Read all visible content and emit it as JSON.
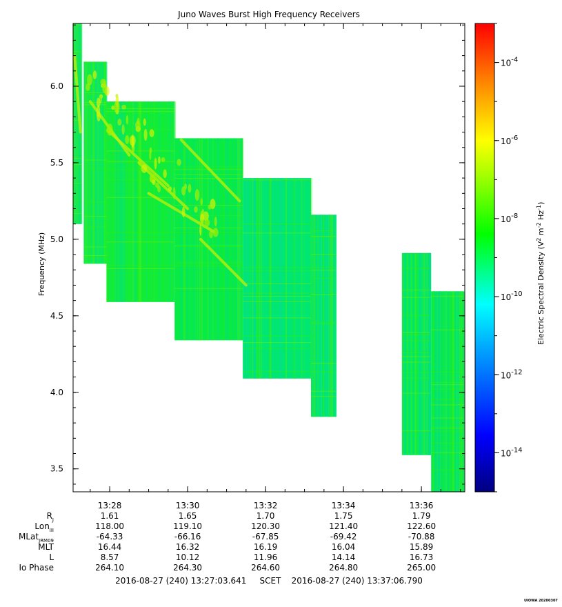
{
  "chart_data": {
    "type": "heatmap",
    "title": "Juno Waves Burst High Frequency Receivers",
    "ylabel": "Frequency (MHz)",
    "x_ticks": [
      "13:28",
      "13:30",
      "13:32",
      "13:34",
      "13:36"
    ],
    "y_ticks": [
      "3.5",
      "4.0",
      "4.5",
      "5.0",
      "5.5",
      "6.0"
    ],
    "ylim": [
      3.35,
      6.41
    ],
    "colorbar": {
      "label": "Electric Spectral Density (V",
      "label_sup1": "2",
      "label_mid": " m",
      "label_sup2": "-2",
      "label_hz": " Hz",
      "label_sup3": "-1",
      "label_end": ")",
      "ticks": [
        {
          "base": "10",
          "exp": "-4"
        },
        {
          "base": "10",
          "exp": "-6"
        },
        {
          "base": "10",
          "exp": "-8"
        },
        {
          "base": "10",
          "exp": "-10"
        },
        {
          "base": "10",
          "exp": "-12"
        },
        {
          "base": "10",
          "exp": "-14"
        }
      ],
      "range_log": [
        -15,
        -3
      ],
      "colors": [
        "#00007f",
        "#0000ff",
        "#00ffff",
        "#00ff00",
        "#ffff00",
        "#ff8000",
        "#ff0000"
      ]
    },
    "blocks": [
      {
        "t0": "13:27:03",
        "t1": "13:27:16",
        "f0": 5.1,
        "f1": 6.41,
        "base": "#00e47a"
      },
      {
        "t0": "13:27:20",
        "t1": "13:27:55",
        "f0": 4.84,
        "f1": 6.16,
        "base": "#14ee36"
      },
      {
        "t0": "13:27:55",
        "t1": "13:29:40",
        "f0": 4.59,
        "f1": 5.9,
        "base": "#10ec38"
      },
      {
        "t0": "13:29:40",
        "t1": "13:31:25",
        "f0": 4.34,
        "f1": 5.66,
        "base": "#08ea44"
      },
      {
        "t0": "13:31:25",
        "t1": "13:33:10",
        "f0": 4.09,
        "f1": 5.4,
        "base": "#00e672"
      },
      {
        "t0": "13:33:10",
        "t1": "13:33:48",
        "f0": 3.84,
        "f1": 5.16,
        "base": "#00e47a"
      },
      {
        "t0": "13:35:30",
        "t1": "13:36:15",
        "f0": 3.59,
        "f1": 4.91,
        "base": "#00e66c"
      },
      {
        "t0": "13:36:15",
        "t1": "13:37:06",
        "f0": 3.35,
        "f1": 4.66,
        "base": "#04e852"
      }
    ],
    "ephemeris": {
      "row_labels": [
        {
          "main": "R",
          "sub": "J"
        },
        {
          "main": "Lon",
          "sub": "III"
        },
        {
          "main": "MLat",
          "sub": "JRM09"
        },
        {
          "main": "MLT",
          "sub": ""
        },
        {
          "main": "L",
          "sub": ""
        },
        {
          "main": "Io Phase",
          "sub": ""
        }
      ],
      "columns": [
        [
          "1.61",
          "118.00",
          "-64.33",
          "16.44",
          "8.57",
          "264.10"
        ],
        [
          "1.65",
          "119.10",
          "-66.16",
          "16.32",
          "10.12",
          "264.30"
        ],
        [
          "1.70",
          "120.30",
          "-67.85",
          "16.19",
          "11.96",
          "264.60"
        ],
        [
          "1.75",
          "121.40",
          "-69.42",
          "16.04",
          "14.14",
          "264.80"
        ],
        [
          "1.79",
          "122.60",
          "-70.88",
          "15.89",
          "16.73",
          "265.00"
        ]
      ]
    },
    "time_range": "2016-08-27 (240) 13:27:03.641     SCET    2016-08-27 (240) 13:37:06.790",
    "stamp": "UIOWA 20200307"
  }
}
